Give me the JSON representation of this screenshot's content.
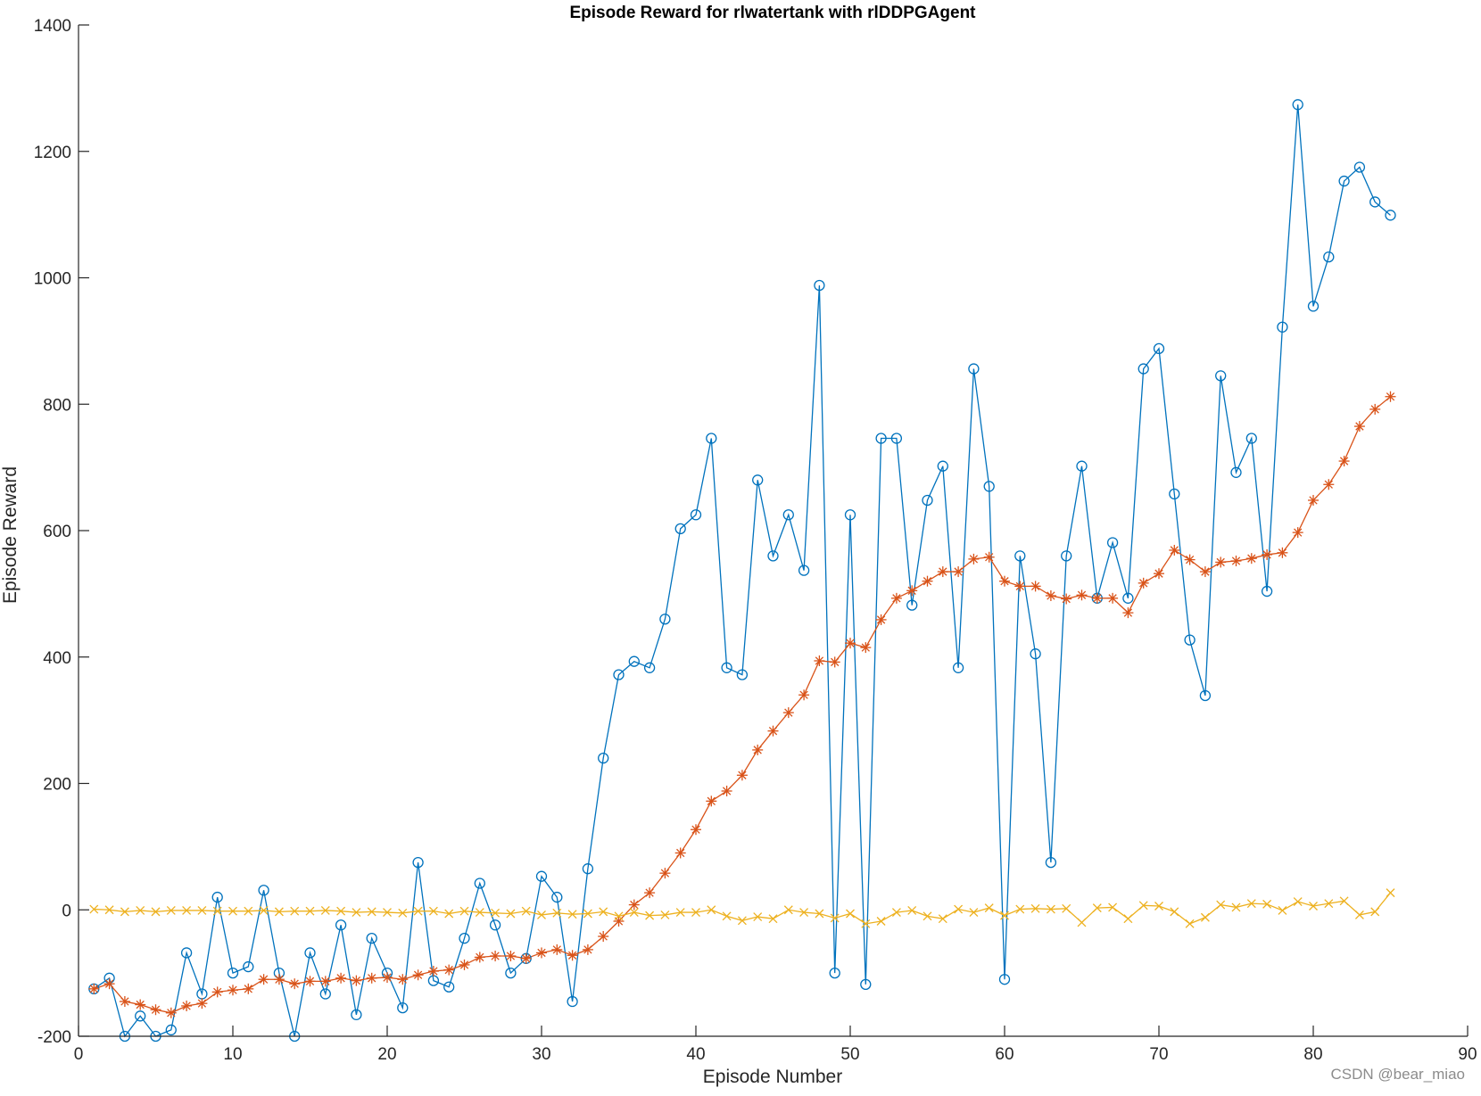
{
  "watermark": "CSDN @bear_miao",
  "chart_data": {
    "type": "line",
    "title": "Episode Reward for rlwatertank with rlDDPGAgent",
    "xlabel": "Episode Number",
    "ylabel": "Episode Reward",
    "xlim": [
      0,
      90
    ],
    "ylim": [
      -200,
      1400
    ],
    "xticks": [
      0,
      10,
      20,
      30,
      40,
      50,
      60,
      70,
      80,
      90
    ],
    "yticks": [
      -200,
      0,
      200,
      400,
      600,
      800,
      1000,
      1200,
      1400
    ],
    "grid": false,
    "legend": false,
    "x": [
      1,
      2,
      3,
      4,
      5,
      6,
      7,
      8,
      9,
      10,
      11,
      12,
      13,
      14,
      15,
      16,
      17,
      18,
      19,
      20,
      21,
      22,
      23,
      24,
      25,
      26,
      27,
      28,
      29,
      30,
      31,
      32,
      33,
      34,
      35,
      36,
      37,
      38,
      39,
      40,
      41,
      42,
      43,
      44,
      45,
      46,
      47,
      48,
      49,
      50,
      51,
      52,
      53,
      54,
      55,
      56,
      57,
      58,
      59,
      60,
      61,
      62,
      63,
      64,
      65,
      66,
      67,
      68,
      69,
      70,
      71,
      72,
      73,
      74,
      75,
      76,
      77,
      78,
      79,
      80,
      81,
      82,
      83,
      84,
      85
    ],
    "series": [
      {
        "color": "#0072BD",
        "marker": "circle",
        "values": [
          -125,
          -108,
          -200,
          -168,
          -200,
          -190,
          -68,
          -133,
          20,
          -100,
          -90,
          31,
          -100,
          -200,
          -68,
          -133,
          -24,
          -166,
          -45,
          -100,
          -155,
          75,
          -112,
          -122,
          -45,
          42,
          -24,
          -100,
          -77,
          53,
          20,
          -145,
          65,
          240,
          372,
          393,
          383,
          460,
          603,
          625,
          746,
          383,
          372,
          680,
          560,
          625,
          537,
          988,
          -100,
          625,
          -118,
          746,
          746,
          482,
          648,
          702,
          383,
          856,
          670,
          -110,
          560,
          405,
          75,
          560,
          702,
          493,
          581,
          493,
          856,
          888,
          658,
          427,
          339,
          845,
          692,
          746,
          504,
          922,
          1274,
          955,
          1033,
          1153,
          1175,
          1120,
          1099
        ]
      },
      {
        "color": "#D95319",
        "marker": "asterisk",
        "values": [
          -125,
          -117,
          -145,
          -150,
          -158,
          -163,
          -152,
          -148,
          -130,
          -127,
          -125,
          -110,
          -110,
          -117,
          -113,
          -113,
          -108,
          -112,
          -108,
          -107,
          -110,
          -103,
          -97,
          -95,
          -87,
          -75,
          -73,
          -73,
          -77,
          -68,
          -63,
          -72,
          -63,
          -42,
          -18,
          8,
          27,
          58,
          90,
          127,
          172,
          188,
          213,
          253,
          283,
          312,
          340,
          394,
          392,
          422,
          415,
          459,
          493,
          505,
          520,
          535,
          535,
          555,
          558,
          520,
          512,
          512,
          497,
          492,
          498,
          493,
          493,
          470,
          517,
          532,
          569,
          554,
          535,
          550,
          552,
          556,
          562,
          565,
          597,
          648,
          673,
          710,
          765,
          792,
          812
        ]
      },
      {
        "color": "#EDB120",
        "marker": "x",
        "values": [
          1,
          0,
          -3,
          -1,
          -3,
          -1,
          -1,
          -1,
          -2,
          -2,
          -2,
          -1,
          -3,
          -2,
          -2,
          -1,
          -2,
          -4,
          -3,
          -4,
          -5,
          -2,
          -2,
          -6,
          -2,
          -4,
          -5,
          -6,
          -2,
          -8,
          -5,
          -7,
          -6,
          -3,
          -10,
          -4,
          -9,
          -8,
          -4,
          -4,
          0,
          -10,
          -17,
          -11,
          -14,
          0,
          -4,
          -6,
          -13,
          -6,
          -22,
          -18,
          -4,
          -1,
          -10,
          -14,
          1,
          -4,
          3,
          -9,
          1,
          2,
          1,
          2,
          -20,
          3,
          4,
          -14,
          7,
          6,
          -3,
          -22,
          -12,
          8,
          4,
          10,
          9,
          -1,
          13,
          6,
          10,
          14,
          -8,
          -3,
          27
        ]
      }
    ]
  }
}
